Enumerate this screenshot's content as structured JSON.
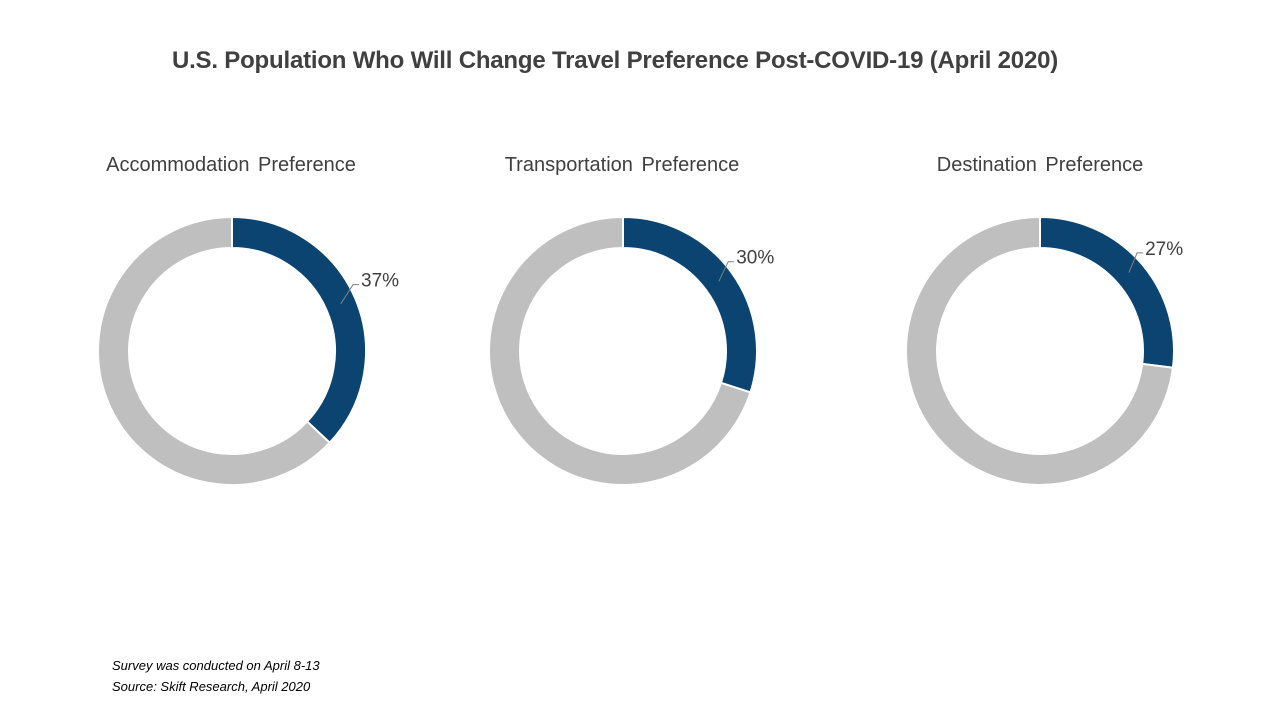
{
  "title": "U.S. Population Who Will Change Travel Preference Post-COVID-19 (April 2020)",
  "colors": {
    "highlight": "#0b4470",
    "remainder": "#bfbfbf",
    "separator": "#ffffff",
    "leader": "#808080"
  },
  "chart_data": [
    {
      "type": "pie",
      "title": "Accommodation Preference",
      "slices": [
        {
          "value": 37,
          "color": "#0b4470",
          "label": "37%"
        },
        {
          "value": 63,
          "color": "#bfbfbf",
          "label": ""
        }
      ]
    },
    {
      "type": "pie",
      "title": "Transportation Preference",
      "slices": [
        {
          "value": 30,
          "color": "#0b4470",
          "label": "30%"
        },
        {
          "value": 70,
          "color": "#bfbfbf",
          "label": ""
        }
      ]
    },
    {
      "type": "pie",
      "title": "Destination Preference",
      "slices": [
        {
          "value": 27,
          "color": "#0b4470",
          "label": "27%"
        },
        {
          "value": 73,
          "color": "#bfbfbf",
          "label": ""
        }
      ]
    }
  ],
  "footnotes": {
    "survey": "Survey was conducted on April 8-13",
    "source": "Source: Skift Research, April 2020"
  }
}
